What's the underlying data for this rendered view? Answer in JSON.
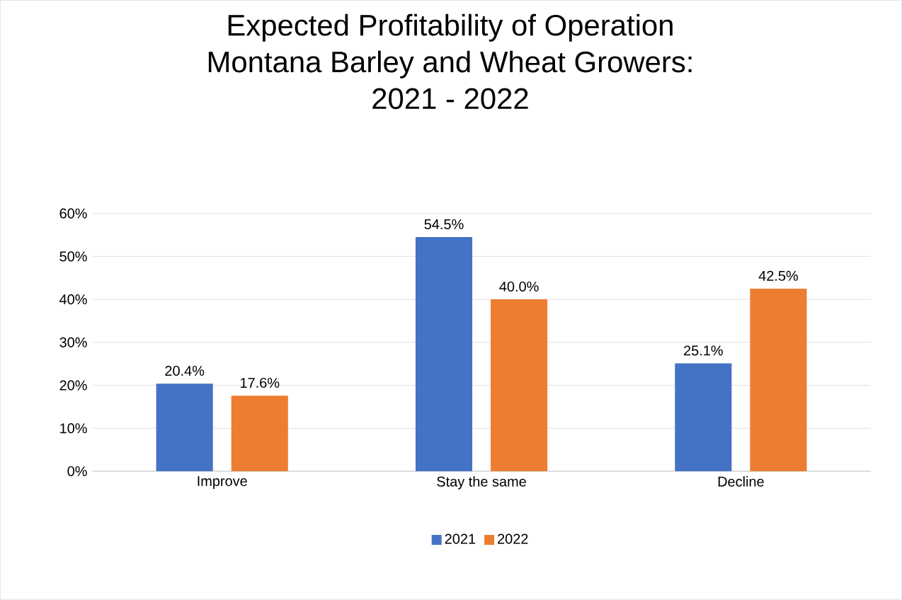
{
  "chart_data": {
    "type": "bar",
    "title": "Expected Profitability of Operation\nMontana Barley and Wheat Growers:\n2021 - 2022",
    "categories": [
      "Improve",
      "Stay the same",
      "Decline"
    ],
    "series": [
      {
        "name": "2021",
        "color": "#4472c4",
        "values": [
          20.4,
          54.5,
          25.1
        ],
        "value_labels": [
          "20.4%",
          "54.5%",
          "25.1%"
        ]
      },
      {
        "name": "2022",
        "color": "#ed7d31",
        "values": [
          17.6,
          40.0,
          42.5
        ],
        "value_labels": [
          "17.6%",
          "40.0%",
          "42.5%"
        ]
      }
    ],
    "ylim": [
      0,
      60
    ],
    "yticks": [
      {
        "value": 0,
        "label": "0%"
      },
      {
        "value": 10,
        "label": "10%"
      },
      {
        "value": 20,
        "label": "20%"
      },
      {
        "value": 30,
        "label": "30%"
      },
      {
        "value": 40,
        "label": "40%"
      },
      {
        "value": 50,
        "label": "50%"
      },
      {
        "value": 60,
        "label": "60%"
      }
    ],
    "grid": "y",
    "legend": "bottom"
  }
}
